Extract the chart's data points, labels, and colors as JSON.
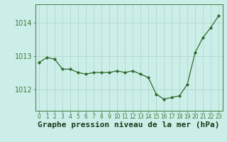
{
  "x": [
    0,
    1,
    2,
    3,
    4,
    5,
    6,
    7,
    8,
    9,
    10,
    11,
    12,
    13,
    14,
    15,
    16,
    17,
    18,
    19,
    20,
    21,
    22,
    23
  ],
  "y": [
    1012.8,
    1012.95,
    1012.9,
    1012.6,
    1012.6,
    1012.5,
    1012.45,
    1012.5,
    1012.5,
    1012.5,
    1012.55,
    1012.5,
    1012.55,
    1012.45,
    1012.35,
    1011.85,
    1011.7,
    1011.75,
    1011.8,
    1012.15,
    1013.1,
    1013.55,
    1013.85,
    1014.2
  ],
  "line_color": "#2d6a2d",
  "marker_color": "#2d6a2d",
  "bg_color": "#cceee8",
  "plot_bg_color": "#cceee8",
  "grid_color": "#aad4cc",
  "ylabel_ticks": [
    1012,
    1013,
    1014
  ],
  "xlabel": "Graphe pression niveau de la mer (hPa)",
  "xlabel_fontsize": 8,
  "tick_fontsize": 7,
  "ylim": [
    1011.35,
    1014.55
  ],
  "xlim": [
    -0.5,
    23.5
  ],
  "border_color": "#3d7a3d"
}
